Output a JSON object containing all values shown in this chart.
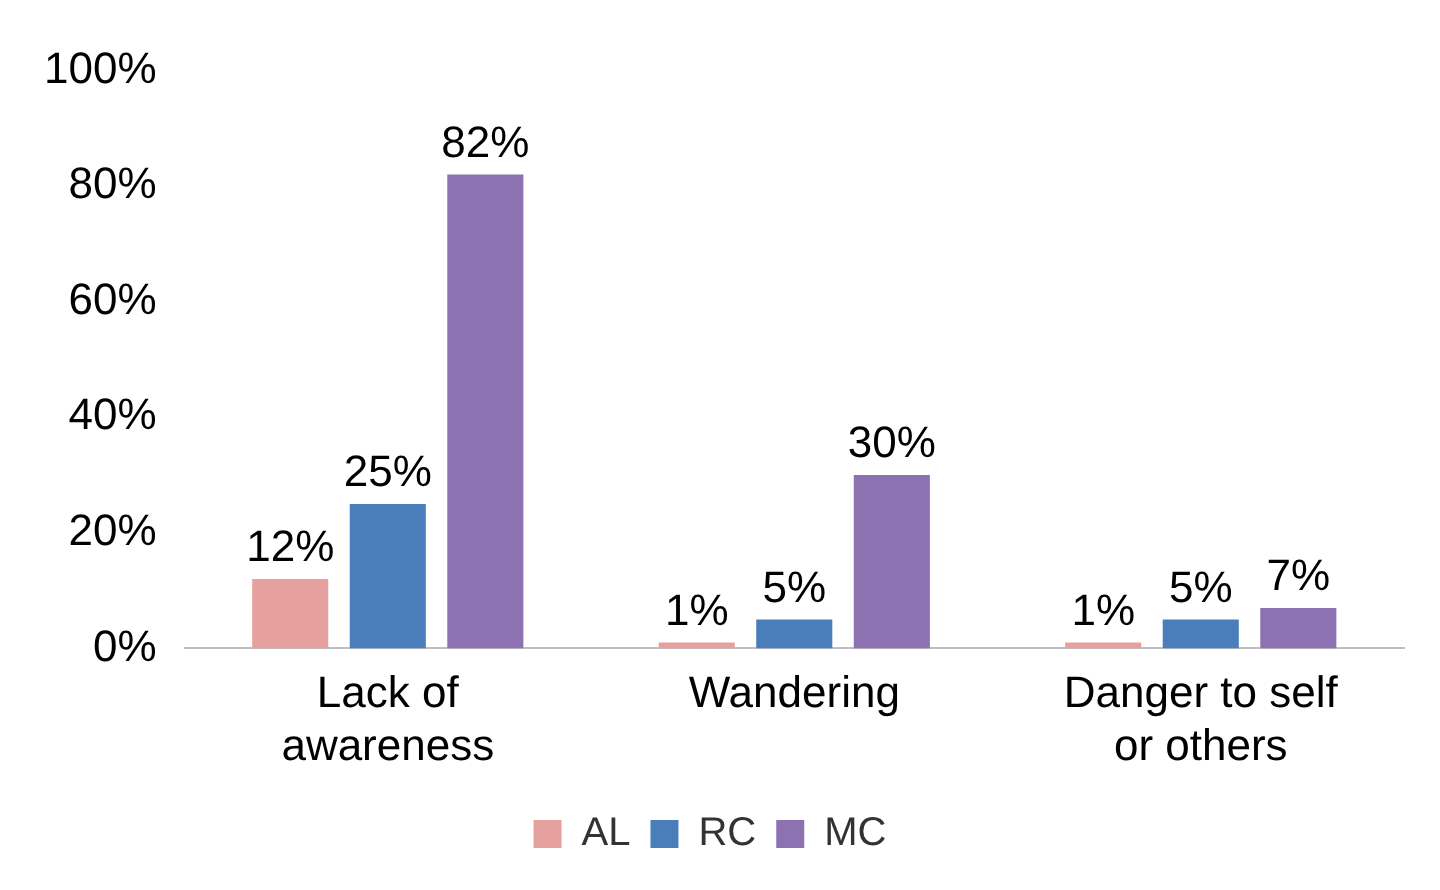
{
  "chart_data": {
    "type": "bar",
    "categories": [
      "Lack of awareness",
      "Wandering",
      "Danger to self or others"
    ],
    "series": [
      {
        "name": "AL",
        "color": "#e6a09e",
        "values": [
          12,
          1,
          1
        ],
        "value_labels": [
          "12%",
          "1%",
          "1%"
        ]
      },
      {
        "name": "RC",
        "color": "#4a7ebb",
        "values": [
          25,
          5,
          5
        ],
        "value_labels": [
          "25%",
          "5%",
          "5%"
        ]
      },
      {
        "name": "MC",
        "color": "#8c72b0",
        "values": [
          82,
          30,
          7
        ],
        "value_labels": [
          "82%",
          "30%",
          "7%"
        ]
      }
    ],
    "ylim": [
      0,
      100
    ],
    "yticks": [
      {
        "value": 0,
        "label": "0%"
      },
      {
        "value": 20,
        "label": "20%"
      },
      {
        "value": 40,
        "label": "40%"
      },
      {
        "value": 60,
        "label": "60%"
      },
      {
        "value": 80,
        "label": "80%"
      },
      {
        "value": 100,
        "label": "100%"
      }
    ],
    "grid": false,
    "legend": "bottom"
  }
}
